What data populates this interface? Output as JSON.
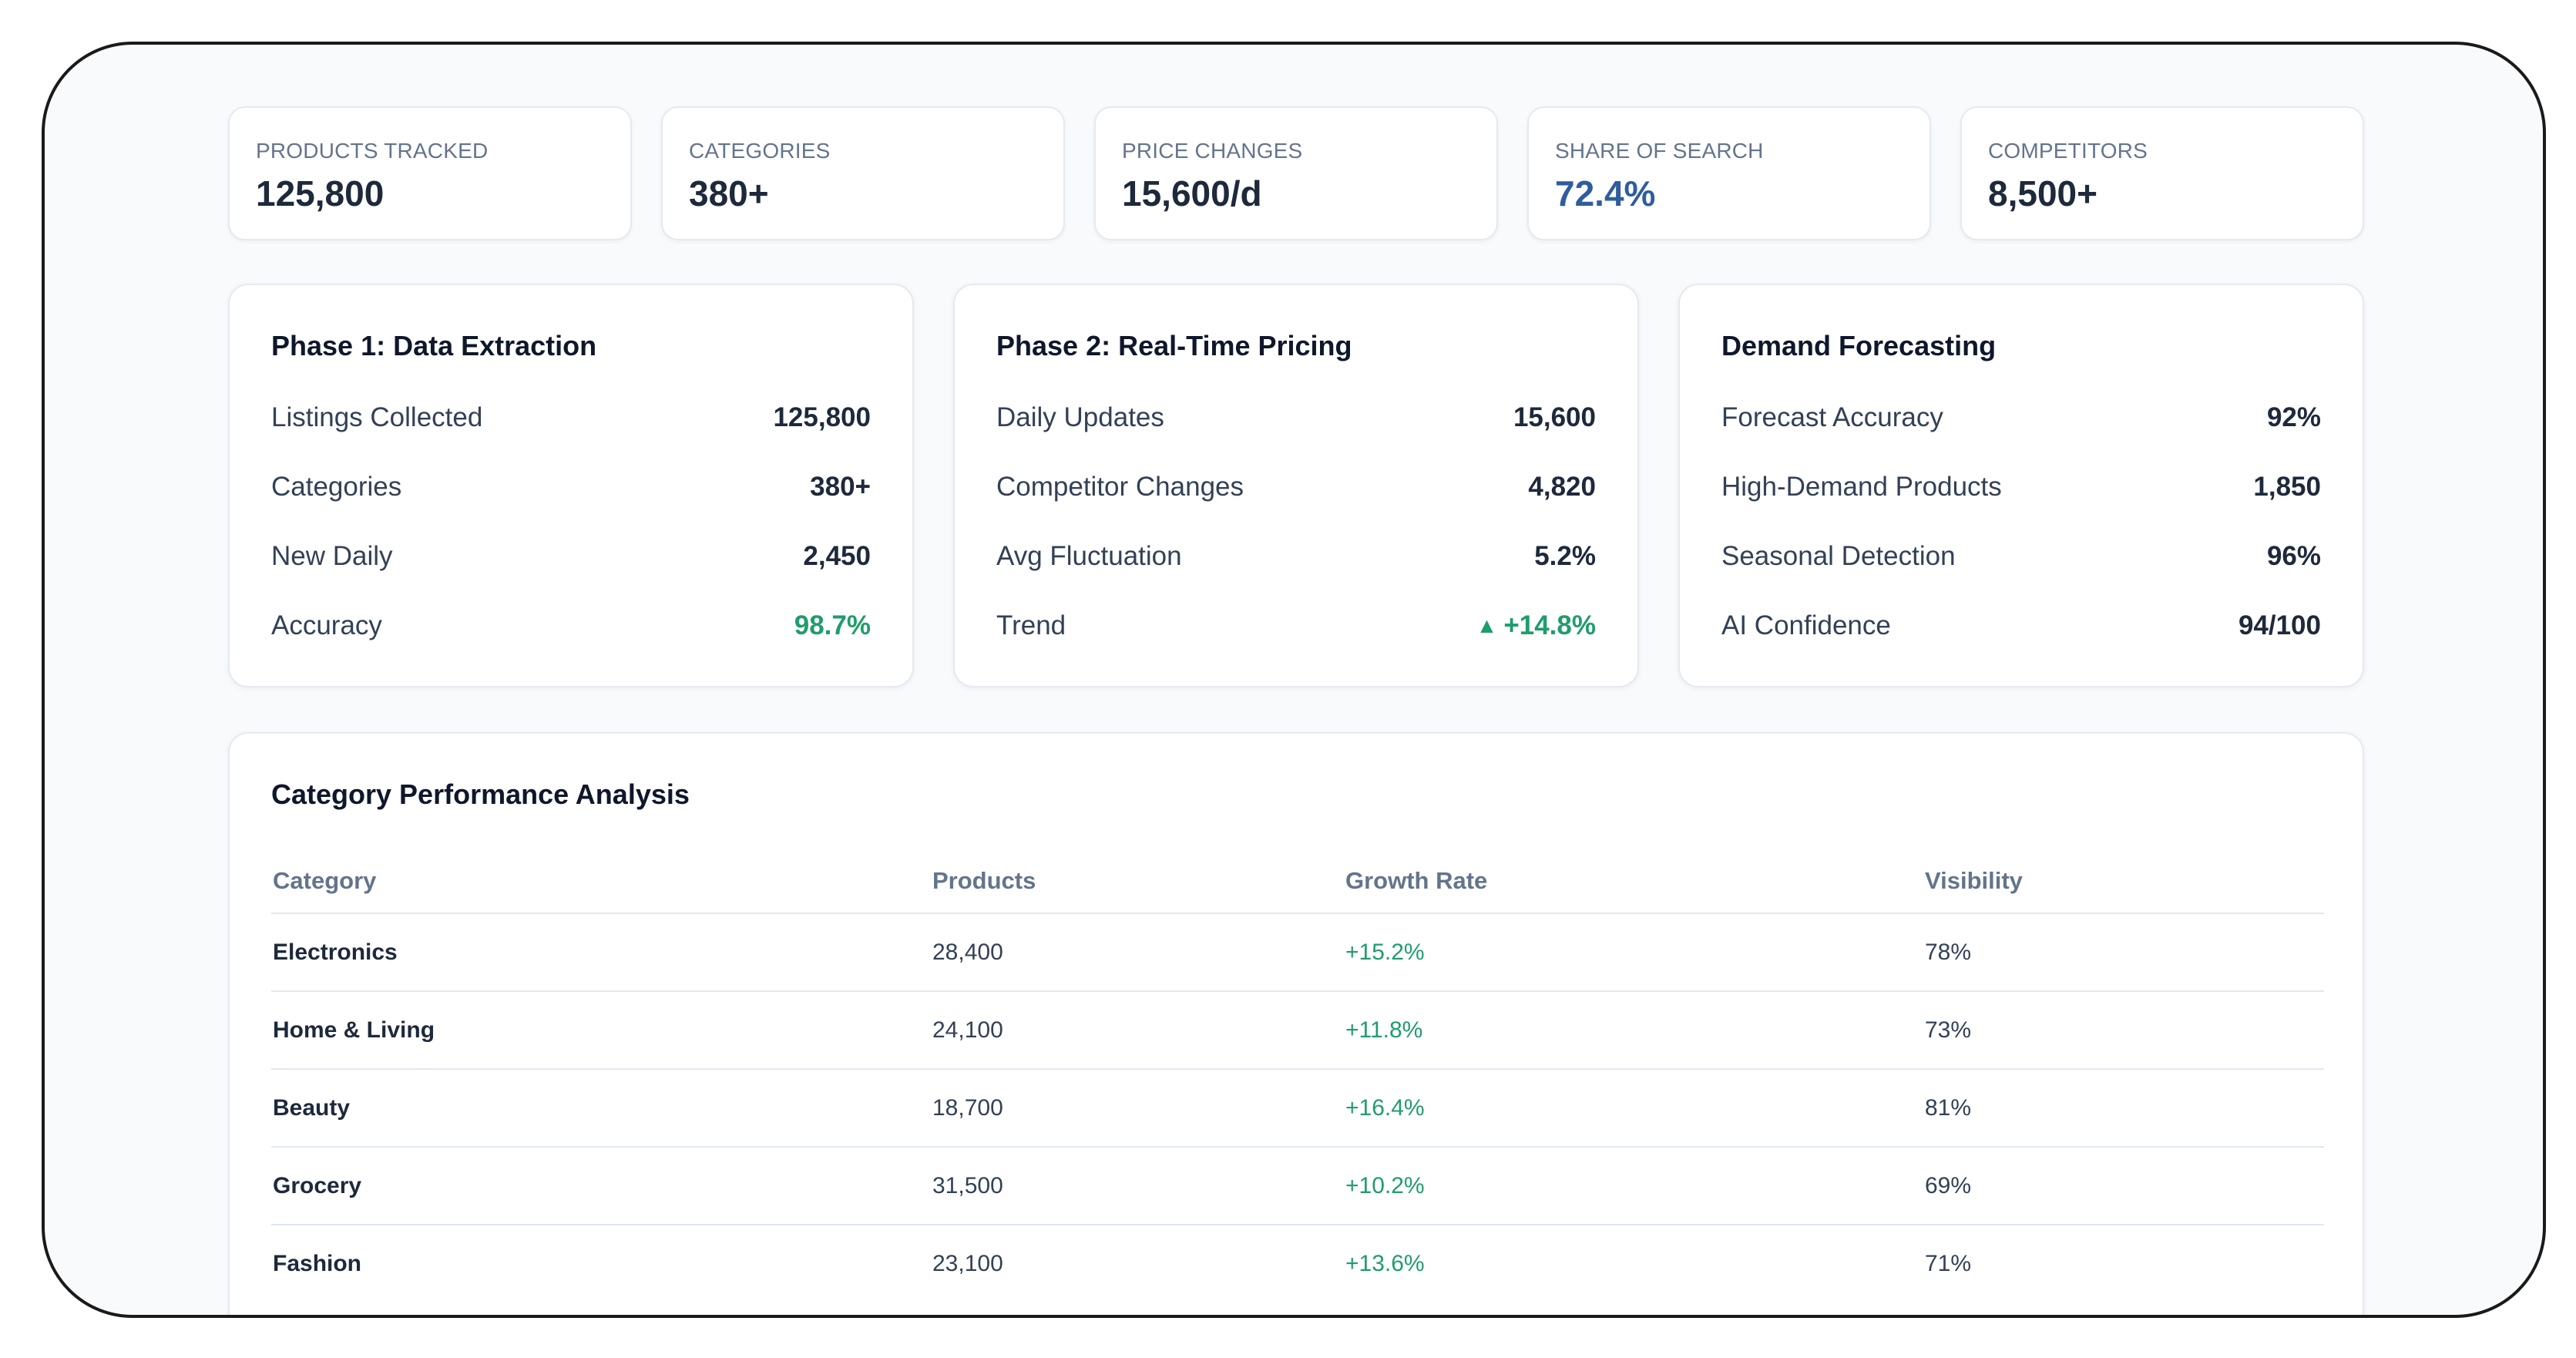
{
  "kpis": [
    {
      "label": "PRODUCTS TRACKED",
      "value": "125,800"
    },
    {
      "label": "CATEGORIES",
      "value": "380+"
    },
    {
      "label": "PRICE CHANGES",
      "value": "15,600/d"
    },
    {
      "label": "SHARE OF SEARCH",
      "value": "72.4%"
    },
    {
      "label": "COMPETITORS",
      "value": "8,500+"
    }
  ],
  "phase1": {
    "title": "Phase 1: Data Extraction",
    "rows": [
      {
        "label": "Listings Collected",
        "value": "125,800"
      },
      {
        "label": "Categories",
        "value": "380+"
      },
      {
        "label": "New Daily",
        "value": "2,450"
      },
      {
        "label": "Accuracy",
        "value": "98.7%"
      }
    ]
  },
  "phase2": {
    "title": "Phase 2: Real-Time Pricing",
    "rows": [
      {
        "label": "Daily Updates",
        "value": "15,600"
      },
      {
        "label": "Competitor Changes",
        "value": "4,820"
      },
      {
        "label": "Avg Fluctuation",
        "value": "5.2%"
      },
      {
        "label": "Trend",
        "value": "+14.8%",
        "arrow": "▲"
      }
    ]
  },
  "forecast": {
    "title": "Demand Forecasting",
    "rows": [
      {
        "label": "Forecast Accuracy",
        "value": "92%"
      },
      {
        "label": "High-Demand Products",
        "value": "1,850"
      },
      {
        "label": "Seasonal Detection",
        "value": "96%"
      },
      {
        "label": "AI Confidence",
        "value": "94/100"
      }
    ]
  },
  "category_table": {
    "title": "Category Performance Analysis",
    "headers": [
      "Category",
      "Products",
      "Growth Rate",
      "Visibility"
    ],
    "rows": [
      {
        "category": "Electronics",
        "products": "28,400",
        "growth": "+15.2%",
        "visibility": "78%"
      },
      {
        "category": "Home & Living",
        "products": "24,100",
        "growth": "+11.8%",
        "visibility": "73%"
      },
      {
        "category": "Beauty",
        "products": "18,700",
        "growth": "+16.4%",
        "visibility": "81%"
      },
      {
        "category": "Grocery",
        "products": "31,500",
        "growth": "+10.2%",
        "visibility": "69%"
      },
      {
        "category": "Fashion",
        "products": "23,100",
        "growth": "+13.6%",
        "visibility": "71%"
      }
    ]
  },
  "colors": {
    "accent_blue": "#2f5d9e",
    "positive_green": "#1f9d6b",
    "muted_text": "#64748b",
    "card_border": "#e5e9f0"
  }
}
